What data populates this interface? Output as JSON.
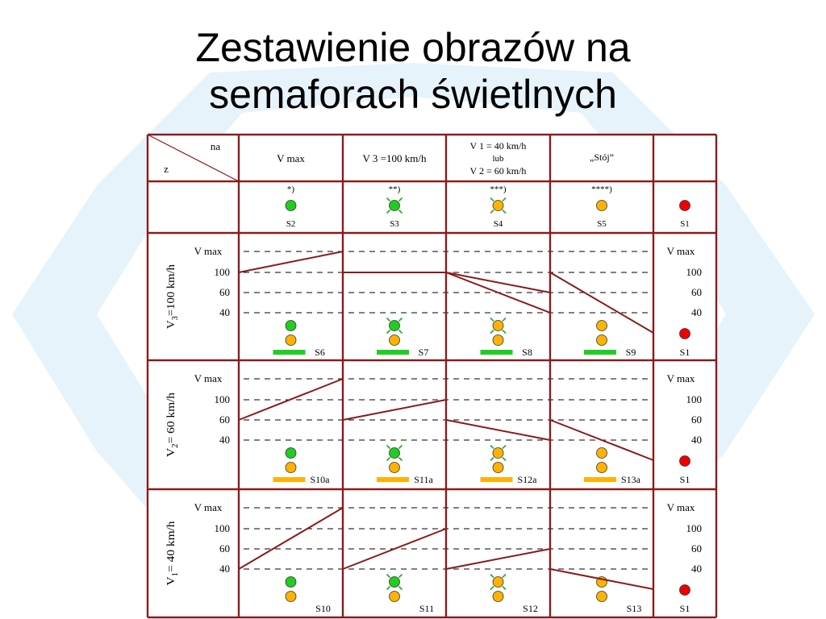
{
  "title": {
    "line1": "Zestawienie obrazów na",
    "line2": "semaforach świetlnych"
  },
  "colors": {
    "border": "#8b1a1a",
    "green": "#22cc22",
    "orange": "#ffb300",
    "red": "#ee0000",
    "watermark": "#e7f3fa"
  },
  "header": {
    "corner_top": "na",
    "corner_bottom": "z",
    "columns": [
      {
        "id": "vmax",
        "lines": [
          "V max"
        ]
      },
      {
        "id": "v3",
        "lines": [
          "V 3 =100 km/h"
        ]
      },
      {
        "id": "v1v2",
        "lines": [
          "V 1 = 40 km/h",
          "lub",
          "V 2 = 60 km/h"
        ]
      },
      {
        "id": "stop",
        "lines": [
          "„Stój”"
        ]
      },
      {
        "id": "last",
        "lines": []
      }
    ]
  },
  "top_row": {
    "marks": [
      "*)",
      "**)",
      "***)",
      "****)",
      ""
    ],
    "signals": [
      {
        "code": "S2",
        "lights": [
          {
            "color": "green",
            "blink": false
          }
        ]
      },
      {
        "code": "S3",
        "lights": [
          {
            "color": "green",
            "blink": true
          }
        ]
      },
      {
        "code": "S4",
        "lights": [
          {
            "color": "orange",
            "blink": true
          }
        ]
      },
      {
        "code": "S5",
        "lights": [
          {
            "color": "orange",
            "blink": false
          }
        ]
      },
      {
        "code": "S1",
        "lights": [
          {
            "color": "red",
            "blink": false
          }
        ]
      }
    ]
  },
  "speed_levels": [
    "V max",
    "100",
    "60",
    "40"
  ],
  "sections": [
    {
      "label": "V3 =100 km/h",
      "label_main": "V",
      "label_sub": "3",
      "label_rest": "=100 km/h",
      "bar_color": "green",
      "signals": [
        {
          "code": "S6",
          "lights": [
            {
              "color": "green",
              "blink": false
            },
            {
              "color": "orange",
              "blink": false
            }
          ],
          "bar": true,
          "profile": [
            100,
            "V max"
          ]
        },
        {
          "code": "S7",
          "lights": [
            {
              "color": "green",
              "blink": true
            },
            {
              "color": "orange",
              "blink": false
            }
          ],
          "bar": true,
          "profile": [
            100,
            100
          ]
        },
        {
          "code": "S8",
          "lights": [
            {
              "color": "orange",
              "blink": true
            },
            {
              "color": "orange",
              "blink": false
            }
          ],
          "bar": true,
          "profiles": [
            [
              100,
              60
            ],
            [
              100,
              40
            ]
          ]
        },
        {
          "code": "S9",
          "lights": [
            {
              "color": "orange",
              "blink": false
            },
            {
              "color": "orange",
              "blink": false
            }
          ],
          "bar": true,
          "profile": [
            100,
            0
          ]
        },
        {
          "code": "S1",
          "lights": [
            {
              "color": "red",
              "blink": false
            }
          ],
          "bar": false
        }
      ]
    },
    {
      "label": "V2 = 60 km/h",
      "label_main": "V",
      "label_sub": "2",
      "label_rest": "= 60 km/h",
      "bar_color": "orange",
      "signals": [
        {
          "code": "S10a",
          "lights": [
            {
              "color": "green",
              "blink": false
            },
            {
              "color": "orange",
              "blink": false
            }
          ],
          "bar": true,
          "profile": [
            60,
            "V max"
          ]
        },
        {
          "code": "S11a",
          "lights": [
            {
              "color": "green",
              "blink": true
            },
            {
              "color": "orange",
              "blink": false
            }
          ],
          "bar": true,
          "profile": [
            60,
            100
          ]
        },
        {
          "code": "S12a",
          "lights": [
            {
              "color": "orange",
              "blink": true
            },
            {
              "color": "orange",
              "blink": false
            }
          ],
          "bar": true,
          "profile": [
            60,
            40
          ]
        },
        {
          "code": "S13a",
          "lights": [
            {
              "color": "orange",
              "blink": false
            },
            {
              "color": "orange",
              "blink": false
            }
          ],
          "bar": true,
          "profile": [
            60,
            0
          ]
        },
        {
          "code": "S1",
          "lights": [
            {
              "color": "red",
              "blink": false
            }
          ],
          "bar": false
        }
      ]
    },
    {
      "label": "V1 = 40 km/h",
      "label_main": "V",
      "label_sub": "1",
      "label_rest": "= 40 km/h",
      "bar_color": "",
      "signals": [
        {
          "code": "S10",
          "lights": [
            {
              "color": "green",
              "blink": false
            },
            {
              "color": "orange",
              "blink": false
            }
          ],
          "bar": false,
          "profile": [
            40,
            "V max"
          ]
        },
        {
          "code": "S11",
          "lights": [
            {
              "color": "green",
              "blink": true
            },
            {
              "color": "orange",
              "blink": false
            }
          ],
          "bar": false,
          "profile": [
            40,
            100
          ]
        },
        {
          "code": "S12",
          "lights": [
            {
              "color": "orange",
              "blink": true
            },
            {
              "color": "orange",
              "blink": false
            }
          ],
          "bar": false,
          "profile": [
            40,
            60
          ]
        },
        {
          "code": "S13",
          "lights": [
            {
              "color": "orange",
              "blink": false
            },
            {
              "color": "orange",
              "blink": false
            }
          ],
          "bar": false,
          "profile": [
            40,
            20
          ]
        },
        {
          "code": "S1",
          "lights": [
            {
              "color": "red",
              "blink": false
            }
          ],
          "bar": false
        }
      ]
    }
  ]
}
